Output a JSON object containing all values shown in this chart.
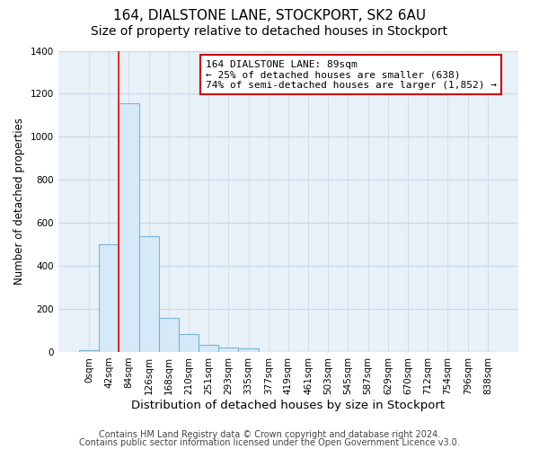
{
  "title": "164, DIALSTONE LANE, STOCKPORT, SK2 6AU",
  "subtitle": "Size of property relative to detached houses in Stockport",
  "xlabel": "Distribution of detached houses by size in Stockport",
  "ylabel": "Number of detached properties",
  "bar_labels": [
    "0sqm",
    "42sqm",
    "84sqm",
    "126sqm",
    "168sqm",
    "210sqm",
    "251sqm",
    "293sqm",
    "335sqm",
    "377sqm",
    "419sqm",
    "461sqm",
    "503sqm",
    "545sqm",
    "587sqm",
    "629sqm",
    "670sqm",
    "712sqm",
    "754sqm",
    "796sqm",
    "838sqm"
  ],
  "bar_heights": [
    10,
    500,
    1155,
    537,
    160,
    85,
    35,
    20,
    15,
    0,
    0,
    0,
    0,
    0,
    0,
    0,
    0,
    0,
    0,
    0,
    0
  ],
  "bar_color": "#d6e9f8",
  "bar_edge_color": "#7ab3d4",
  "red_line_x": 1.5,
  "ylim": [
    0,
    1400
  ],
  "yticks": [
    0,
    200,
    400,
    600,
    800,
    1000,
    1200,
    1400
  ],
  "annotation_title": "164 DIALSTONE LANE: 89sqm",
  "annotation_line1": "← 25% of detached houses are smaller (638)",
  "annotation_line2": "74% of semi-detached houses are larger (1,852) →",
  "annotation_box_facecolor": "#ffffff",
  "annotation_box_edgecolor": "#cc0000",
  "footer_line1": "Contains HM Land Registry data © Crown copyright and database right 2024.",
  "footer_line2": "Contains public sector information licensed under the Open Government Licence v3.0.",
  "background_color": "#ffffff",
  "plot_background_color": "#e8f0f8",
  "grid_color": "#c8d8e8",
  "title_fontsize": 11,
  "subtitle_fontsize": 10,
  "xlabel_fontsize": 9.5,
  "ylabel_fontsize": 8.5,
  "tick_fontsize": 7.5,
  "footer_fontsize": 7
}
